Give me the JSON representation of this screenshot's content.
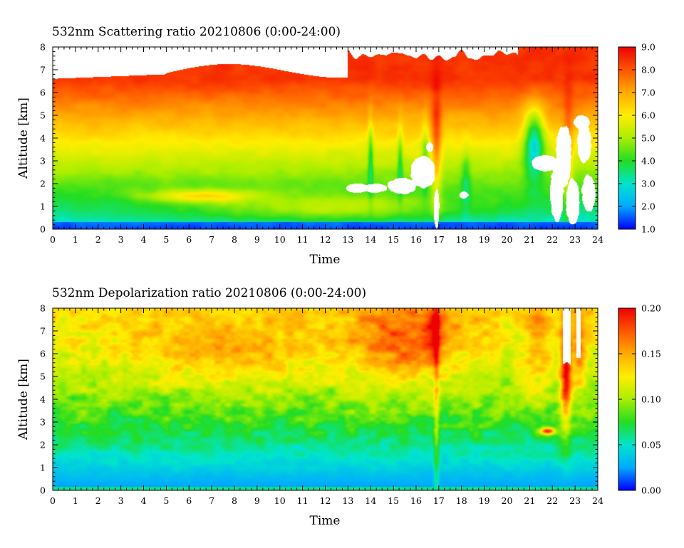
{
  "chart_data": [
    {
      "type": "heatmap",
      "title": "532nm Scattering ratio  20210806 (0:00-24:00)",
      "xlabel": "Time",
      "ylabel": "Altitude [km]",
      "xlim": [
        0,
        24
      ],
      "ylim": [
        0,
        8
      ],
      "x_ticks": [
        "0",
        "1",
        "2",
        "3",
        "4",
        "5",
        "6",
        "7",
        "8",
        "9",
        "10",
        "11",
        "12",
        "13",
        "14",
        "15",
        "16",
        "17",
        "18",
        "19",
        "20",
        "21",
        "22",
        "23",
        "24"
      ],
      "y_ticks": [
        "0",
        "1",
        "2",
        "3",
        "4",
        "5",
        "6",
        "7",
        "8"
      ],
      "colorbar": {
        "range": [
          1.0,
          9.0
        ],
        "ticks": [
          "1.0",
          "2.0",
          "3.0",
          "4.0",
          "5.0",
          "6.0",
          "7.0",
          "8.0",
          "9.0"
        ],
        "colors": [
          "#0000ff",
          "#00aaff",
          "#00e5cc",
          "#22dd22",
          "#aaee00",
          "#ffee00",
          "#ffaa00",
          "#ff5500",
          "#ee0000"
        ]
      }
    },
    {
      "type": "heatmap",
      "title": "532nm Depolarization ratio  20210806 (0:00-24:00)",
      "xlabel": "Time",
      "ylabel": "Altitude [km]",
      "xlim": [
        0,
        24
      ],
      "ylim": [
        0,
        8
      ],
      "x_ticks": [
        "0",
        "1",
        "2",
        "3",
        "4",
        "5",
        "6",
        "7",
        "8",
        "9",
        "10",
        "11",
        "12",
        "13",
        "14",
        "15",
        "16",
        "17",
        "18",
        "19",
        "20",
        "21",
        "22",
        "23",
        "24"
      ],
      "y_ticks": [
        "0",
        "1",
        "2",
        "3",
        "4",
        "5",
        "6",
        "7",
        "8"
      ],
      "colorbar": {
        "range": [
          0.0,
          0.2
        ],
        "ticks": [
          "0.00",
          "0.05",
          "0.10",
          "0.15",
          "0.20"
        ],
        "colors": [
          "#0000ff",
          "#00aaff",
          "#00e5cc",
          "#22dd22",
          "#aaee00",
          "#ffee00",
          "#ffaa00",
          "#ff5500",
          "#ee0000"
        ]
      }
    }
  ]
}
